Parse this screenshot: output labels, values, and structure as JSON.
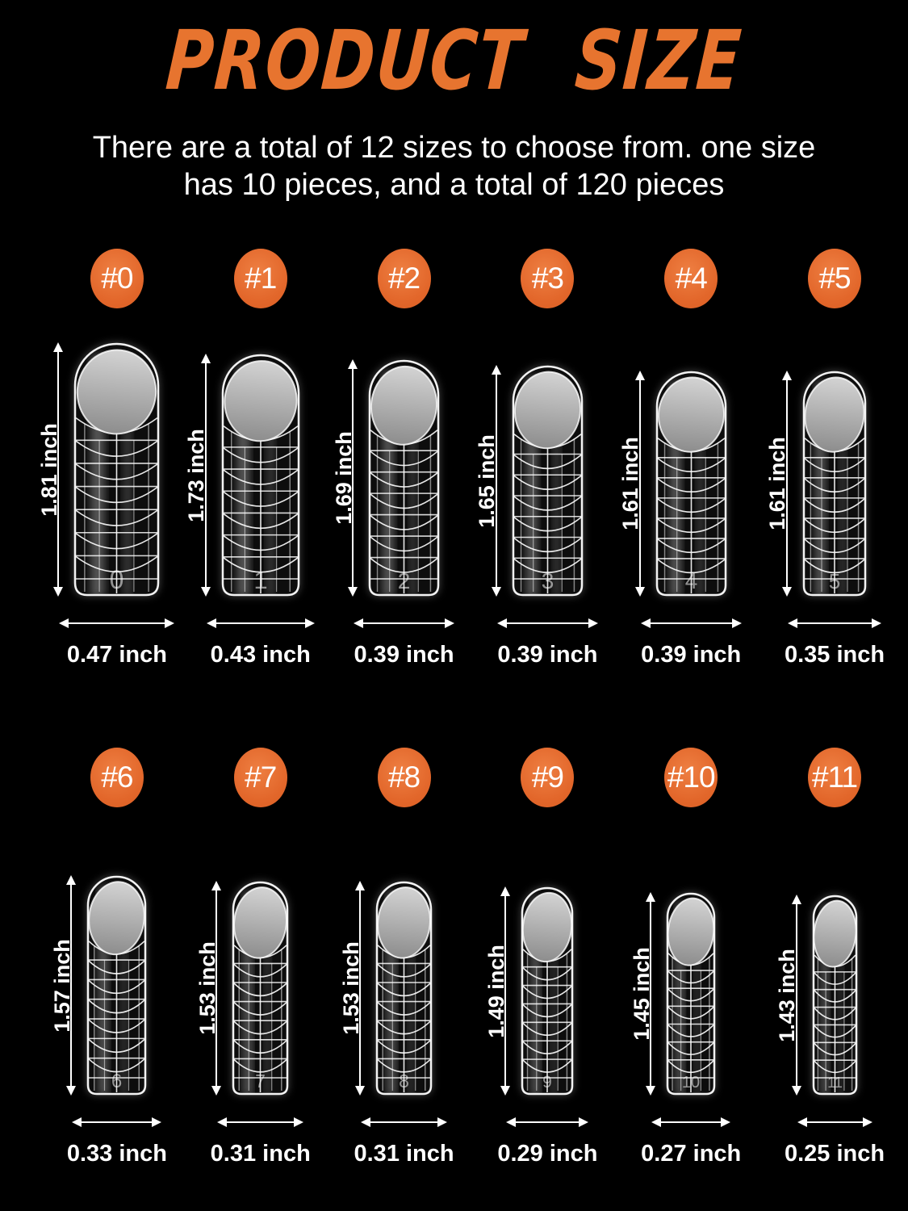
{
  "title": "PRODUCT SIZE",
  "subtitle": {
    "line1": "There are a total of 12 sizes to choose from. one size",
    "line2": "has 10 pieces, and a total of 120 pieces"
  },
  "unit": "inch",
  "colors": {
    "background": "#000000",
    "badge_orange": "#e2662a",
    "title_orange": "#e7742f",
    "text_white": "#ffffff"
  },
  "sizes": [
    {
      "badge": "#0",
      "nail_number": "0",
      "height": "1.81 inch",
      "width": "0.47 inch",
      "height_in": 1.81,
      "width_in": 0.47,
      "row": 0
    },
    {
      "badge": "#1",
      "nail_number": "1",
      "height": "1.73 inch",
      "width": "0.43 inch",
      "height_in": 1.73,
      "width_in": 0.43,
      "row": 0
    },
    {
      "badge": "#2",
      "nail_number": "2",
      "height": "1.69 inch",
      "width": "0.39 inch",
      "height_in": 1.69,
      "width_in": 0.39,
      "row": 0
    },
    {
      "badge": "#3",
      "nail_number": "3",
      "height": "1.65 inch",
      "width": "0.39 inch",
      "height_in": 1.65,
      "width_in": 0.39,
      "row": 0
    },
    {
      "badge": "#4",
      "nail_number": "4",
      "height": "1.61 inch",
      "width": "0.39 inch",
      "height_in": 1.61,
      "width_in": 0.39,
      "row": 0
    },
    {
      "badge": "#5",
      "nail_number": "5",
      "height": "1.61 inch",
      "width": "0.35 inch",
      "height_in": 1.61,
      "width_in": 0.35,
      "row": 0
    },
    {
      "badge": "#6",
      "nail_number": "6",
      "height": "1.57 inch",
      "width": "0.33 inch",
      "height_in": 1.57,
      "width_in": 0.33,
      "row": 1
    },
    {
      "badge": "#7",
      "nail_number": "7",
      "height": "1.53 inch",
      "width": "0.31 inch",
      "height_in": 1.53,
      "width_in": 0.31,
      "row": 1
    },
    {
      "badge": "#8",
      "nail_number": "8",
      "height": "1.53 inch",
      "width": "0.31 inch",
      "height_in": 1.53,
      "width_in": 0.31,
      "row": 1
    },
    {
      "badge": "#9",
      "nail_number": "9",
      "height": "1.49 inch",
      "width": "0.29 inch",
      "height_in": 1.49,
      "width_in": 0.29,
      "row": 1
    },
    {
      "badge": "#10",
      "nail_number": "10",
      "height": "1.45 inch",
      "width": "0.27 inch",
      "height_in": 1.45,
      "width_in": 0.27,
      "row": 1
    },
    {
      "badge": "#11",
      "nail_number": "11",
      "height": "1.43 inch",
      "width": "0.25 inch",
      "height_in": 1.43,
      "width_in": 0.25,
      "row": 1
    }
  ]
}
